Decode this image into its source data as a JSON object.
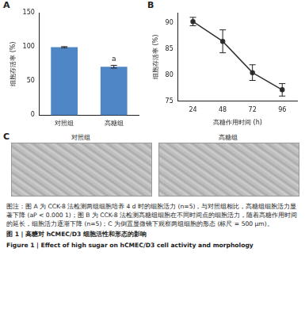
{
  "chart_data": [
    {
      "label": "A",
      "type": "bar",
      "categories": [
        "对照组",
        "高糖组"
      ],
      "values": [
        99.5,
        71.0
      ],
      "errors": [
        0.8,
        2.0
      ],
      "colors": [
        "#4f86c6",
        "#4f86c6"
      ],
      "y_label": "细胞存活率 (%)",
      "ylim": [
        0,
        150
      ],
      "yticks": [
        0,
        50,
        100,
        150
      ],
      "grid": false,
      "annotations": [
        {
          "text": "a",
          "category": "高糖组"
        }
      ]
    },
    {
      "label": "B",
      "type": "line",
      "categories": [
        "24",
        "48",
        "72",
        "96"
      ],
      "values": [
        90.3,
        86.5,
        80.5,
        77.2
      ],
      "errors": [
        0.8,
        2.2,
        1.5,
        1.2
      ],
      "color": "#333333",
      "marker": "circle",
      "x_label": "高糖作用时间 (h)",
      "y_label": "细胞存活率 (%)",
      "ylim": [
        75,
        92
      ],
      "yticks": [
        75,
        80,
        85,
        90
      ],
      "grid": false
    }
  ],
  "panel_c": {
    "label": "C",
    "images": [
      {
        "title": "对照组"
      },
      {
        "title": "高糖组"
      }
    ]
  },
  "caption": {
    "note": "图注：图 A 为 CCK-8 法检测两组细胞培养 4 d 时的细胞活力 (n=5)，与对照组相比，高糖组细胞活力显著下降 (aP < 0.000 1)；图 B 为 CCK-8 法检测高糖组细胞在不同时间点的细胞活力，随着高糖作用时间的延长，细胞活力逐渐下降 (n=5)；C 为倒置显微镜下观察两组细胞的形态 (标尺 = 500 μm)。",
    "title_cn": "图 1 | 高糖对 hCMEC/D3 细胞活性和形态的影响",
    "title_en": "Figure 1 | Effect of high sugar on hCMEC/D3 cell activity and morphology"
  }
}
